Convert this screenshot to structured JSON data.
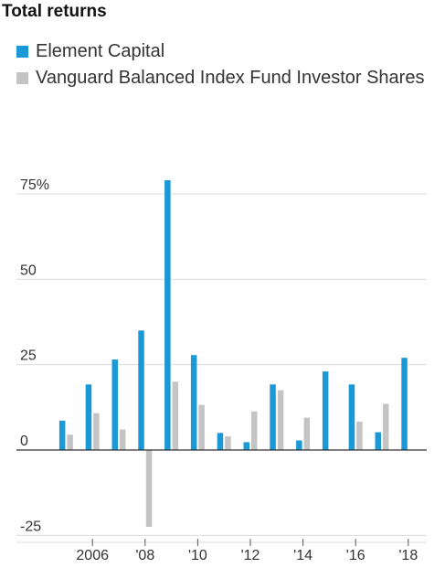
{
  "chart_data": {
    "type": "bar",
    "title": "Total returns",
    "categories": [
      "2005",
      "2006",
      "2007",
      "2008",
      "2009",
      "2010",
      "2011",
      "2012",
      "2013",
      "2014",
      "2015",
      "2016",
      "2017",
      "2018"
    ],
    "x_tick_labels": [
      {
        "category": "2006",
        "label": "2006"
      },
      {
        "category": "2008",
        "label": "'08"
      },
      {
        "category": "2010",
        "label": "'10"
      },
      {
        "category": "2012",
        "label": "'12"
      },
      {
        "category": "2014",
        "label": "'14"
      },
      {
        "category": "2016",
        "label": "'16"
      },
      {
        "category": "2018",
        "label": "'18"
      }
    ],
    "y_tick_labels": [
      {
        "value": 75,
        "label": "75%"
      },
      {
        "value": 50,
        "label": "50"
      },
      {
        "value": 25,
        "label": "25"
      },
      {
        "value": 0,
        "label": "0"
      },
      {
        "value": -25,
        "label": "-25"
      }
    ],
    "series": [
      {
        "name": "Element Capital",
        "color": "#1a99d6",
        "values": [
          8.6,
          19.2,
          26.5,
          35,
          79,
          27.8,
          5,
          2.3,
          19.2,
          2.8,
          23,
          19.2,
          5.2,
          27
        ]
      },
      {
        "name": "Vanguard Balanced Index Fund Investor Shares",
        "color": "#c4c4c4",
        "values": [
          4.5,
          10.8,
          6,
          -22.5,
          20,
          13.2,
          4,
          11.3,
          17.5,
          9.5,
          null,
          8.3,
          13.5,
          null
        ]
      }
    ],
    "ylim": [
      -25,
      75
    ],
    "xlabel": "",
    "ylabel": "",
    "grid": true,
    "legend_position": "top-left"
  }
}
